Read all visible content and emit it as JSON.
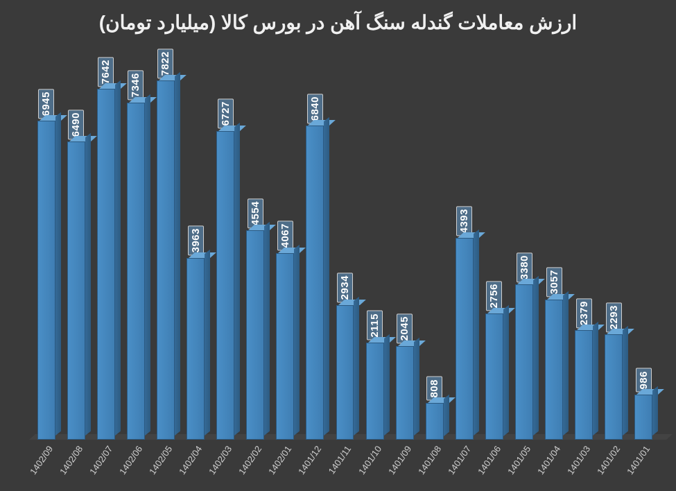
{
  "chart": {
    "type": "bar",
    "title": "ارزش معاملات گندله سنگ آهن در بورس کالا (میلیارد تومان)",
    "title_fontsize": 28,
    "title_color": "#f0f0f0",
    "background_color": "#3a3a3a",
    "bar_fill_color": "#4a8fc7",
    "bar_side_color": "#2d5b82",
    "bar_top_color": "#6aa8d8",
    "data_label_bg": "#4e6d88",
    "data_label_border": "#d0d0d0",
    "data_label_color": "#ffffff",
    "data_label_fontsize": 15,
    "x_label_color": "#cfcfcf",
    "x_label_fontsize": 13,
    "x_label_rotation_deg": -55,
    "y_max": 8200,
    "y_min": 0,
    "bar_width_ratio": 0.7,
    "categories": [
      "1402/09",
      "1402/08",
      "1402/07",
      "1402/06",
      "1402/05",
      "1402/04",
      "1402/03",
      "1402/02",
      "1402/01",
      "1401/12",
      "1401/11",
      "1401/10",
      "1401/09",
      "1401/08",
      "1401/07",
      "1401/06",
      "1401/05",
      "1401/04",
      "1401/03",
      "1401/02",
      "1401/01"
    ],
    "values": [
      6945,
      6490,
      7642,
      7346,
      7822,
      3963,
      6727,
      4554,
      4067,
      6840,
      2934,
      2115,
      2045,
      808,
      4393,
      2756,
      3380,
      3057,
      2379,
      2293,
      986
    ]
  }
}
